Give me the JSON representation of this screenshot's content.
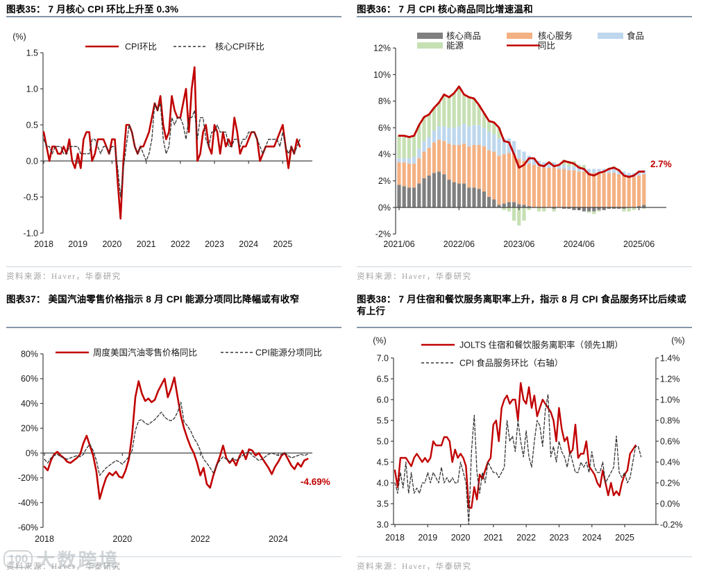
{
  "watermark": {
    "logo": "100",
    "text": "大数跨境"
  },
  "chart_data": [
    {
      "id": "f35",
      "type": "line",
      "title": "图表35：  7 月核心 CPI 环比上升至 0.3%",
      "unit_labels": [
        "(%)"
      ],
      "y_tick_labels": [
        "1.5",
        "1.0",
        "0.5",
        "0.0",
        "-0.5",
        "-1.0"
      ],
      "x_tick_labels": [
        "2018",
        "2019",
        "2020",
        "2021",
        "2022",
        "2023",
        "2024",
        "2025"
      ],
      "x_range": [
        "2018-01",
        "2025-07"
      ],
      "ylim": [
        -1.0,
        1.5
      ],
      "legend": [
        {
          "label": "CPI环比",
          "style": "solid",
          "color": "#C00000"
        },
        {
          "label": "核心CPI环比",
          "style": "dash",
          "color": "#333333"
        }
      ],
      "series": [
        {
          "name": "CPI环比",
          "style": "solid",
          "color": "#C00000",
          "width": 2.6,
          "values": [
            0.4,
            0.2,
            0.0,
            0.2,
            0.2,
            0.1,
            0.1,
            0.2,
            0.1,
            0.3,
            0.0,
            -0.1,
            0.1,
            -0.1,
            0.3,
            0.4,
            0.4,
            0.0,
            0.1,
            0.3,
            0.3,
            0.3,
            0.2,
            0.1,
            0.3,
            0.3,
            -0.3,
            -0.8,
            0.0,
            0.5,
            0.5,
            0.4,
            0.2,
            0.1,
            0.2,
            0.2,
            0.3,
            0.4,
            0.6,
            0.8,
            0.7,
            0.9,
            0.5,
            0.3,
            0.4,
            0.9,
            0.7,
            0.6,
            0.6,
            0.8,
            1.0,
            0.4,
            1.0,
            1.3,
            0.0,
            0.1,
            0.4,
            0.5,
            0.2,
            0.1,
            0.5,
            0.4,
            0.1,
            0.4,
            0.2,
            0.3,
            0.2,
            0.6,
            0.4,
            0.1,
            0.2,
            0.2,
            0.3,
            0.4,
            0.4,
            0.3,
            0.0,
            0.1,
            0.2,
            0.2,
            0.2,
            0.2,
            0.3,
            0.4,
            0.5,
            0.2,
            -0.1,
            0.2,
            0.1,
            0.3,
            0.2
          ]
        },
        {
          "name": "核心CPI环比",
          "style": "dash",
          "color": "#333333",
          "width": 1.3,
          "values": [
            0.3,
            0.2,
            0.2,
            0.1,
            0.2,
            0.2,
            0.2,
            0.1,
            0.1,
            0.2,
            0.2,
            0.2,
            0.2,
            0.1,
            0.1,
            0.1,
            0.1,
            0.3,
            0.3,
            0.2,
            0.1,
            0.2,
            0.2,
            0.1,
            0.2,
            0.2,
            -0.1,
            -0.5,
            -0.1,
            0.2,
            0.5,
            0.4,
            0.2,
            0.1,
            0.2,
            0.1,
            0.0,
            0.1,
            0.3,
            0.8,
            0.7,
            0.8,
            0.3,
            0.1,
            0.2,
            0.6,
            0.5,
            0.6,
            0.6,
            0.5,
            0.3,
            0.6,
            0.6,
            0.7,
            0.3,
            0.6,
            0.6,
            0.3,
            0.2,
            0.4,
            0.4,
            0.5,
            0.4,
            0.4,
            0.4,
            0.2,
            0.2,
            0.3,
            0.3,
            0.2,
            0.3,
            0.3,
            0.4,
            0.4,
            0.4,
            0.3,
            0.2,
            0.1,
            0.2,
            0.3,
            0.3,
            0.3,
            0.3,
            0.2,
            0.4,
            0.2,
            0.1,
            0.2,
            0.1,
            0.2,
            0.3
          ]
        }
      ],
      "annotations": [],
      "source": "资料来源：Haver，华泰研究"
    },
    {
      "id": "f36",
      "type": "stacked_bar_line",
      "title": "图表36：  7 月 CPI 核心商品同比增速温和",
      "unit_labels": [],
      "y_tick_labels": [
        "12%",
        "10%",
        "8%",
        "6%",
        "4%",
        "2%",
        "0%",
        "-2%"
      ],
      "x_tick_labels": [
        "2021/06",
        "2022/06",
        "2023/06",
        "2024/06",
        "2025/06"
      ],
      "x_range": [
        "2021-06",
        "2025-07"
      ],
      "ylim": [
        -2,
        12
      ],
      "legend": [
        {
          "label": "核心商品",
          "style": "box",
          "color": "#7F7F7F"
        },
        {
          "label": "核心服务",
          "style": "box",
          "color": "#F4B183"
        },
        {
          "label": "食品",
          "style": "box",
          "color": "#BDD7EE"
        },
        {
          "label": "能源",
          "style": "box",
          "color": "#C6E0B4"
        },
        {
          "label": "同比",
          "style": "solid",
          "color": "#C00000"
        }
      ],
      "bar_series": [
        {
          "name": "核心商品",
          "color": "#7F7F7F",
          "values": [
            1.7,
            1.6,
            1.5,
            1.5,
            1.8,
            2.2,
            2.4,
            2.6,
            2.7,
            2.5,
            2.1,
            1.9,
            1.8,
            1.8,
            1.5,
            1.5,
            1.4,
            1.2,
            0.8,
            0.6,
            0.2,
            0.3,
            0.4,
            0.4,
            0.25,
            0.2,
            0.1,
            0.0,
            0.0,
            0.0,
            0.0,
            -0.1,
            0.0,
            -0.1,
            -0.1,
            -0.2,
            -0.2,
            -0.3,
            -0.3,
            -0.3,
            -0.2,
            -0.2,
            -0.1,
            -0.1,
            -0.1,
            -0.1,
            0.0,
            0.0,
            0.1,
            0.2
          ]
        },
        {
          "name": "核心服务",
          "color": "#F4B183",
          "values": [
            1.7,
            1.8,
            1.8,
            1.8,
            1.9,
            2.0,
            2.1,
            2.3,
            2.4,
            2.5,
            2.7,
            2.8,
            2.9,
            3.0,
            3.1,
            3.2,
            3.3,
            3.4,
            3.5,
            3.6,
            3.7,
            3.7,
            3.7,
            3.6,
            3.4,
            3.3,
            3.2,
            3.2,
            3.1,
            3.0,
            3.0,
            3.0,
            2.9,
            2.9,
            2.8,
            2.8,
            2.7,
            2.7,
            2.6,
            2.6,
            2.6,
            2.6,
            2.6,
            2.6,
            2.5,
            2.4,
            2.3,
            2.3,
            2.3,
            2.3
          ]
        },
        {
          "name": "食品",
          "color": "#BDD7EE",
          "values": [
            0.3,
            0.3,
            0.4,
            0.5,
            0.7,
            0.8,
            0.8,
            0.9,
            1.0,
            1.1,
            1.2,
            1.3,
            1.4,
            1.5,
            1.5,
            1.5,
            1.5,
            1.4,
            1.4,
            1.3,
            1.3,
            1.2,
            1.1,
            1.0,
            0.7,
            0.7,
            0.6,
            0.5,
            0.4,
            0.4,
            0.4,
            0.4,
            0.3,
            0.3,
            0.3,
            0.3,
            0.3,
            0.3,
            0.3,
            0.3,
            0.3,
            0.3,
            0.3,
            0.3,
            0.3,
            0.3,
            0.3,
            0.3,
            0.3,
            0.3
          ]
        },
        {
          "name": "能源",
          "color": "#C6E0B4",
          "values": [
            1.7,
            1.7,
            1.6,
            1.6,
            1.8,
            1.8,
            1.7,
            1.7,
            1.8,
            2.4,
            2.3,
            2.6,
            3.0,
            2.2,
            2.2,
            2.0,
            1.5,
            1.1,
            0.8,
            0.9,
            0.8,
            -0.2,
            -0.3,
            -1.0,
            -1.35,
            -1.0,
            -0.2,
            0.0,
            -0.3,
            -0.3,
            0.0,
            -0.2,
            0.0,
            0.4,
            0.4,
            0.4,
            0.2,
            0.2,
            -0.1,
            -0.2,
            -0.1,
            0.0,
            0.1,
            0.2,
            0.1,
            -0.2,
            -0.3,
            -0.2,
            0.0,
            -0.1
          ]
        }
      ],
      "line_series": {
        "name": "同比",
        "color": "#C00000",
        "width": 2.8,
        "values": [
          5.4,
          5.4,
          5.3,
          5.4,
          6.2,
          6.8,
          7.0,
          7.5,
          7.9,
          8.5,
          8.3,
          8.6,
          9.1,
          8.5,
          8.3,
          8.2,
          7.7,
          7.1,
          6.5,
          6.4,
          6.0,
          5.0,
          4.9,
          4.0,
          3.0,
          3.2,
          3.7,
          3.7,
          3.2,
          3.1,
          3.4,
          3.1,
          3.2,
          3.5,
          3.4,
          3.3,
          3.0,
          2.9,
          2.5,
          2.4,
          2.6,
          2.7,
          2.9,
          3.0,
          2.8,
          2.4,
          2.3,
          2.4,
          2.7,
          2.7
        ]
      },
      "annotations": [
        {
          "text": "2.7%",
          "color": "#C00000"
        }
      ],
      "source": "资料来源：Haver，华泰研究"
    },
    {
      "id": "f37",
      "type": "line",
      "title": "图表37：  美国汽油零售价格指示 8 月 CPI 能源分项同比降幅或有收窄",
      "unit_labels": [],
      "y_tick_labels": [
        "80%",
        "60%",
        "40%",
        "20%",
        "0%",
        "-20%",
        "-40%",
        "-60%"
      ],
      "x_tick_labels": [
        "2018",
        "2020",
        "2022",
        "2024"
      ],
      "x_range": [
        "2018-01",
        "2024-10"
      ],
      "ylim": [
        -60,
        80
      ],
      "legend": [
        {
          "label": "周度美国汽油零售价格同比",
          "style": "solid",
          "color": "#C00000"
        },
        {
          "label": "CPI能源分项同比",
          "style": "dash",
          "color": "#333333"
        }
      ],
      "series": [
        {
          "name": "周度美国汽油零售价格同比",
          "style": "solid",
          "color": "#C00000",
          "width": 2.6,
          "values": [
            -11,
            -14,
            -6,
            -1,
            1,
            -2,
            -4,
            -7,
            -8,
            -6,
            -4,
            -1,
            8,
            14,
            6,
            -2,
            -15,
            -37,
            -28,
            -20,
            -16,
            -18,
            -15,
            -19,
            -20,
            -14,
            -5,
            15,
            45,
            58,
            48,
            42,
            44,
            41,
            43,
            50,
            55,
            60,
            45,
            52,
            61,
            45,
            30,
            20,
            12,
            5,
            0,
            -8,
            -18,
            -12,
            -25,
            -28,
            -18,
            -10,
            -3,
            6,
            -4,
            -8,
            -5,
            -10,
            -3,
            2,
            -5,
            3,
            2,
            -2,
            0,
            -4,
            -8,
            -12,
            -17,
            -11,
            -7,
            -2,
            0,
            -5,
            -10,
            -13,
            -8,
            -11,
            -6,
            -4.69
          ]
        },
        {
          "name": "CPI能源分项同比",
          "style": "dash",
          "color": "#333333",
          "width": 1.3,
          "values": [
            -5,
            -8,
            -4,
            -2,
            -1,
            -3,
            -4,
            -5,
            -4,
            -3,
            -2,
            -3,
            -1,
            4,
            7,
            2,
            -6,
            -18,
            -15,
            -12,
            -10,
            -8,
            -6,
            -7,
            -9,
            -6,
            -3,
            2,
            18,
            26,
            27,
            24,
            23,
            25,
            27,
            30,
            33,
            29,
            27,
            26,
            28,
            33,
            41,
            25,
            22,
            18,
            12,
            8,
            2,
            -5,
            -8,
            -12,
            -16,
            -10,
            -6,
            -3,
            -5,
            -7,
            -4,
            -6,
            -4,
            -2,
            0,
            1,
            -2,
            -4,
            -6,
            -5,
            -3,
            -1,
            0,
            -1,
            -2,
            -1,
            0,
            -2,
            -4,
            -3,
            -2,
            -1,
            -2,
            -1
          ]
        }
      ],
      "annotations": [
        {
          "text": "-4.69%",
          "color": "#C00000"
        }
      ],
      "source": "资料来源：Haver，华泰研究"
    },
    {
      "id": "f38",
      "type": "dual_line",
      "title": "图表38：  7 月住宿和餐饮服务离职率上升，指示 8 月 CPI 食品服务环比后续或有上行",
      "unit_labels": [
        "(%)",
        "(%)"
      ],
      "y_tick_labels_left": [
        "7.0",
        "6.5",
        "6.0",
        "5.5",
        "5.0",
        "4.5",
        "4.0",
        "3.5",
        "3.0"
      ],
      "y_tick_labels_right": [
        "1.4%",
        "1.2%",
        "1.0%",
        "0.8%",
        "0.6%",
        "0.4%",
        "0.2%",
        "0.0%",
        "-0.2%"
      ],
      "x_tick_labels": [
        "2018",
        "2019",
        "2020",
        "2021",
        "2022",
        "2023",
        "2024",
        "2025"
      ],
      "x_range": [
        "2018-01",
        "2025-07"
      ],
      "ylim_left": [
        3.0,
        7.0
      ],
      "ylim_right": [
        -0.2,
        1.4
      ],
      "legend": [
        {
          "label": "JOLTS 住宿和餐饮服务离职率（领先1期）",
          "style": "solid",
          "color": "#C00000"
        },
        {
          "label": "CPI 食品服务环比（右轴）",
          "style": "dash",
          "color": "#333333"
        }
      ],
      "series": [
        {
          "name": "JOLTS 住宿和餐饮服务离职率（领先1期）",
          "axis": "left",
          "style": "solid",
          "color": "#C00000",
          "width": 2.4,
          "values": [
            4.3,
            3.9,
            4.6,
            4.6,
            4.6,
            4.5,
            4.4,
            4.6,
            4.7,
            4.6,
            4.5,
            4.6,
            4.5,
            4.6,
            5.0,
            4.9,
            4.9,
            4.9,
            5.1,
            5.1,
            5.0,
            4.5,
            4.8,
            4.6,
            4.7,
            4.6,
            4.4,
            3.4,
            3.4,
            3.9,
            3.6,
            4.2,
            4.1,
            4.3,
            4.5,
            4.6,
            5.4,
            5.5,
            5.0,
            5.8,
            6.0,
            6.1,
            5.9,
            6.0,
            6.0,
            5.5,
            6.4,
            6.0,
            5.9,
            6.3,
            5.8,
            6.1,
            5.6,
            5.8,
            6.0,
            5.9,
            5.8,
            5.7,
            5.5,
            5.0,
            5.8,
            5.3,
            5.0,
            5.1,
            4.7,
            4.8,
            5.4,
            4.6,
            4.7,
            4.7,
            5.0,
            4.4,
            4.3,
            4.2,
            4.0,
            3.9,
            4.3,
            4.0,
            3.7,
            4.0,
            3.7,
            3.8,
            3.7,
            4.0,
            4.2,
            4.3,
            4.7,
            4.8,
            4.9
          ]
        },
        {
          "name": "CPI 食品服务环比（右轴）",
          "axis": "right",
          "style": "dash",
          "color": "#333333",
          "width": 1.3,
          "values": [
            0.2,
            0.1,
            0.3,
            0.15,
            0.4,
            0.1,
            0.3,
            0.1,
            0.15,
            0.1,
            0.2,
            0.2,
            0.3,
            0.2,
            0.3,
            0.25,
            0.2,
            0.35,
            0.2,
            0.25,
            0.2,
            0.25,
            0.2,
            0.2,
            0.4,
            0.3,
            0.2,
            -0.2,
            0.5,
            0.85,
            0.3,
            0.1,
            0.3,
            0.2,
            0.4,
            0.35,
            0.3,
            0.3,
            0.25,
            0.3,
            0.35,
            0.8,
            0.6,
            0.65,
            0.5,
            0.8,
            0.6,
            0.45,
            0.7,
            0.45,
            0.35,
            0.6,
            0.8,
            0.75,
            0.55,
            0.9,
            1.05,
            0.45,
            0.55,
            0.4,
            0.6,
            0.5,
            0.45,
            0.35,
            0.5,
            0.4,
            0.3,
            0.3,
            0.4,
            0.35,
            0.4,
            0.3,
            0.5,
            0.35,
            0.3,
            0.3,
            0.4,
            0.2,
            0.25,
            0.3,
            0.35,
            0.65,
            0.3,
            0.25,
            0.3,
            0.2,
            0.25,
            0.4,
            0.55,
            0.55,
            0.45
          ]
        }
      ],
      "annotations": [],
      "source": "资料来源：Haver，华泰研究"
    }
  ]
}
